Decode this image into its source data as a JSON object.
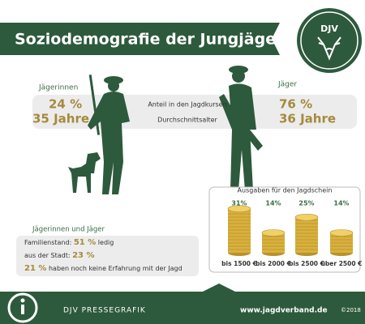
{
  "header": {
    "title": "Soziodemografie der Jungjäger",
    "logo": "DJV"
  },
  "women": {
    "label": "Jägerinnen",
    "share": "24 %",
    "age": "35 Jahre"
  },
  "center": {
    "share_label": "Anteil in den Jagdkursen",
    "age_label": "Durchschnittsalter"
  },
  "men": {
    "label": "Jäger",
    "share": "76 %",
    "age": "36 Jahre"
  },
  "expenses": {
    "title": "Ausgaben für den Jagdschein",
    "values": [
      31,
      14,
      25,
      14
    ],
    "value_labels": [
      "31%",
      "14%",
      "25%",
      "14%"
    ],
    "categories": [
      "bis 1500 €",
      "bis 2000 €",
      "bis 2500 €",
      "über 2500 €"
    ]
  },
  "all": {
    "title": "Jägerinnen und Jäger",
    "lines": [
      [
        "Familienstand:",
        "51 %",
        "ledig"
      ],
      [
        "aus der Stadt:",
        "23 %"
      ],
      [
        "21 %",
        "haben noch keine Erfahrung mit der Jagd"
      ]
    ]
  },
  "footer": {
    "left": "DJV PRESSEGRAFIK",
    "url": "www.jagdverband.de",
    "copyright": "©2018"
  }
}
